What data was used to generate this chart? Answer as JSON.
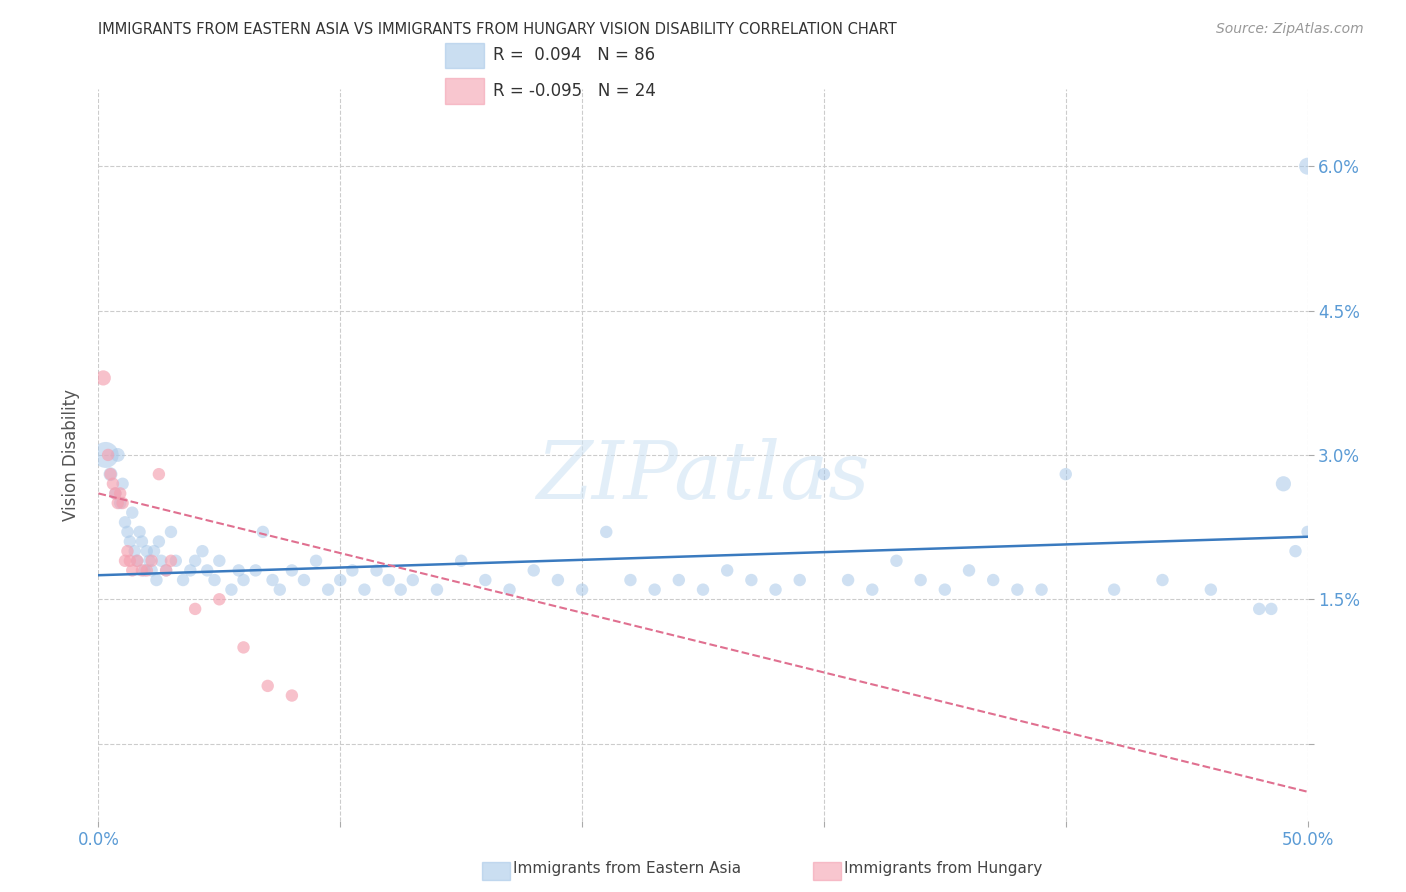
{
  "title": "IMMIGRANTS FROM EASTERN ASIA VS IMMIGRANTS FROM HUNGARY VISION DISABILITY CORRELATION CHART",
  "source": "Source: ZipAtlas.com",
  "ylabel": "Vision Disability",
  "xlim": [
    0.0,
    0.5
  ],
  "ylim": [
    -0.008,
    0.068
  ],
  "yticks": [
    0.0,
    0.015,
    0.03,
    0.045,
    0.06
  ],
  "ytick_labels": [
    "",
    "1.5%",
    "3.0%",
    "4.5%",
    "6.0%"
  ],
  "xticks": [
    0.0,
    0.1,
    0.2,
    0.3,
    0.4,
    0.5
  ],
  "xtick_labels": [
    "0.0%",
    "",
    "",
    "",
    "",
    "50.0%"
  ],
  "blue_R": 0.094,
  "blue_N": 86,
  "pink_R": -0.095,
  "pink_N": 24,
  "blue_color": "#a8c8e8",
  "pink_color": "#f4a0b0",
  "blue_line_color": "#3a7abf",
  "pink_line_color": "#e07090",
  "watermark": "ZIPatlas",
  "legend_label_blue": "Immigrants from Eastern Asia",
  "legend_label_pink": "Immigrants from Hungary",
  "blue_line_x0": 0.0,
  "blue_line_y0": 0.0175,
  "blue_line_x1": 0.5,
  "blue_line_y1": 0.0215,
  "pink_line_x0": 0.0,
  "pink_line_y0": 0.026,
  "pink_line_x1": 0.5,
  "pink_line_y1": -0.005,
  "blue_x": [
    0.003,
    0.005,
    0.007,
    0.008,
    0.009,
    0.01,
    0.011,
    0.012,
    0.013,
    0.014,
    0.015,
    0.016,
    0.017,
    0.018,
    0.019,
    0.02,
    0.021,
    0.022,
    0.023,
    0.024,
    0.025,
    0.026,
    0.028,
    0.03,
    0.032,
    0.035,
    0.038,
    0.04,
    0.043,
    0.045,
    0.048,
    0.05,
    0.055,
    0.058,
    0.06,
    0.065,
    0.068,
    0.072,
    0.075,
    0.08,
    0.085,
    0.09,
    0.095,
    0.1,
    0.105,
    0.11,
    0.115,
    0.12,
    0.125,
    0.13,
    0.14,
    0.15,
    0.16,
    0.17,
    0.18,
    0.19,
    0.2,
    0.21,
    0.22,
    0.23,
    0.24,
    0.25,
    0.26,
    0.27,
    0.28,
    0.29,
    0.3,
    0.31,
    0.32,
    0.33,
    0.34,
    0.35,
    0.36,
    0.37,
    0.38,
    0.39,
    0.4,
    0.42,
    0.44,
    0.46,
    0.48,
    0.485,
    0.49,
    0.495,
    0.5,
    0.5
  ],
  "blue_y": [
    0.03,
    0.028,
    0.026,
    0.03,
    0.025,
    0.027,
    0.023,
    0.022,
    0.021,
    0.024,
    0.02,
    0.019,
    0.022,
    0.021,
    0.018,
    0.02,
    0.019,
    0.018,
    0.02,
    0.017,
    0.021,
    0.019,
    0.018,
    0.022,
    0.019,
    0.017,
    0.018,
    0.019,
    0.02,
    0.018,
    0.017,
    0.019,
    0.016,
    0.018,
    0.017,
    0.018,
    0.022,
    0.017,
    0.016,
    0.018,
    0.017,
    0.019,
    0.016,
    0.017,
    0.018,
    0.016,
    0.018,
    0.017,
    0.016,
    0.017,
    0.016,
    0.019,
    0.017,
    0.016,
    0.018,
    0.017,
    0.016,
    0.022,
    0.017,
    0.016,
    0.017,
    0.016,
    0.018,
    0.017,
    0.016,
    0.017,
    0.028,
    0.017,
    0.016,
    0.019,
    0.017,
    0.016,
    0.018,
    0.017,
    0.016,
    0.016,
    0.028,
    0.016,
    0.017,
    0.016,
    0.014,
    0.014,
    0.027,
    0.02,
    0.06,
    0.022
  ],
  "blue_sizes": [
    350,
    100,
    80,
    100,
    80,
    80,
    80,
    80,
    80,
    80,
    80,
    80,
    80,
    80,
    80,
    80,
    80,
    80,
    80,
    80,
    80,
    80,
    80,
    80,
    80,
    80,
    80,
    80,
    80,
    80,
    80,
    80,
    80,
    80,
    80,
    80,
    80,
    80,
    80,
    80,
    80,
    80,
    80,
    80,
    80,
    80,
    80,
    80,
    80,
    80,
    80,
    80,
    80,
    80,
    80,
    80,
    80,
    80,
    80,
    80,
    80,
    80,
    80,
    80,
    80,
    80,
    80,
    80,
    80,
    80,
    80,
    80,
    80,
    80,
    80,
    80,
    80,
    80,
    80,
    80,
    80,
    80,
    120,
    80,
    150,
    80
  ],
  "pink_x": [
    0.002,
    0.004,
    0.005,
    0.006,
    0.007,
    0.008,
    0.009,
    0.01,
    0.011,
    0.012,
    0.013,
    0.014,
    0.016,
    0.018,
    0.02,
    0.022,
    0.025,
    0.028,
    0.03,
    0.04,
    0.05,
    0.06,
    0.07,
    0.08
  ],
  "pink_y": [
    0.038,
    0.03,
    0.028,
    0.027,
    0.026,
    0.025,
    0.026,
    0.025,
    0.019,
    0.02,
    0.019,
    0.018,
    0.019,
    0.018,
    0.018,
    0.019,
    0.028,
    0.018,
    0.019,
    0.014,
    0.015,
    0.01,
    0.006,
    0.005
  ],
  "pink_sizes": [
    120,
    80,
    80,
    80,
    80,
    80,
    80,
    80,
    80,
    80,
    80,
    80,
    80,
    80,
    80,
    80,
    80,
    80,
    80,
    80,
    80,
    80,
    80,
    80
  ]
}
